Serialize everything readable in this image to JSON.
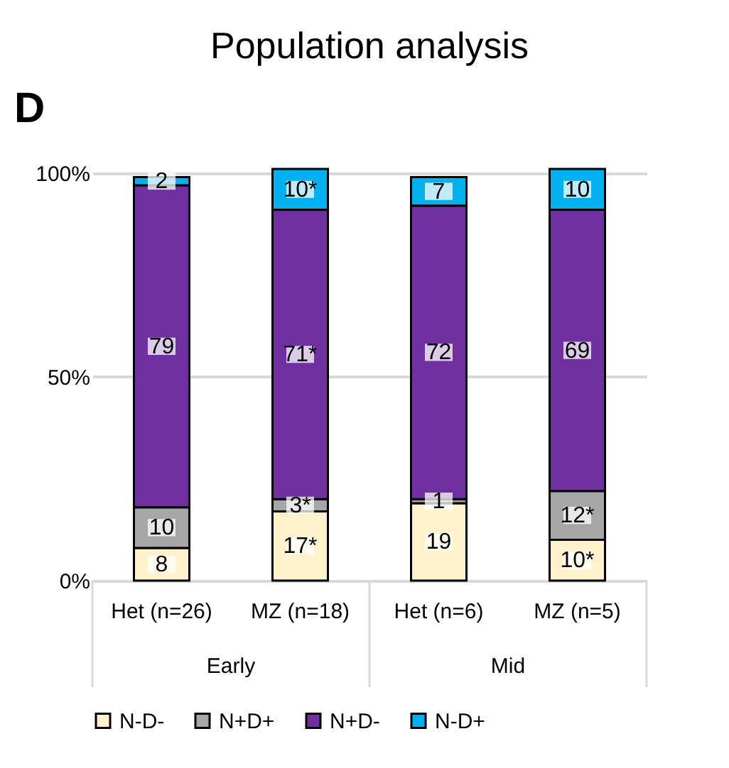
{
  "chart_data": {
    "type": "bar",
    "title": "Population analysis",
    "annotations": [
      "D",
      "Early",
      "Mid"
    ],
    "categories": [
      "Het (n=26)",
      "MZ (n=18)",
      "Het (n=6)",
      "MZ (n=5)"
    ],
    "stacked": true,
    "series": [
      {
        "name": "N-D-",
        "color": "#fff2cc",
        "values": [
          8,
          17,
          19,
          10
        ],
        "value_labels": [
          "8",
          "17*",
          "19",
          "10*"
        ]
      },
      {
        "name": "N+D+",
        "color": "#a6a6a6",
        "values": [
          10,
          3,
          1,
          12
        ],
        "value_labels": [
          "10",
          "3*",
          "1",
          "12*"
        ]
      },
      {
        "name": "N+D-",
        "color": "#7030a0",
        "values": [
          79,
          71,
          72,
          69
        ],
        "value_labels": [
          "79",
          "71*",
          "72",
          "69"
        ]
      },
      {
        "name": "N-D+",
        "color": "#00b0f0",
        "values": [
          2,
          10,
          7,
          10
        ],
        "value_labels": [
          "2",
          "10*",
          "7",
          "10"
        ]
      }
    ],
    "ylim": [
      0,
      101
    ],
    "yticks": [
      {
        "value": 0,
        "label": "0%"
      },
      {
        "value": 50,
        "label": "50%"
      },
      {
        "value": 100,
        "label": "100%"
      }
    ],
    "grid": "y",
    "legend": "bottom"
  }
}
